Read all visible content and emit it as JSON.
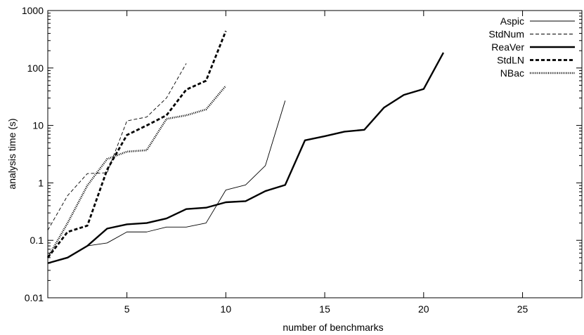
{
  "chart_data": {
    "type": "line",
    "title": "",
    "xlabel": "number of benchmarks",
    "ylabel": "analysis time (s)",
    "xlim": [
      1,
      28
    ],
    "ylim": [
      0.01,
      1000
    ],
    "yscale": "log",
    "grid": false,
    "legend_position": "top-right",
    "x_ticks": [
      5,
      10,
      15,
      20,
      25
    ],
    "x_tick_labels": [
      "5",
      "10",
      "15",
      "20",
      "25"
    ],
    "y_ticks": [
      0.01,
      0.1,
      1,
      10,
      100,
      1000
    ],
    "y_tick_labels": [
      "0.01",
      "0.1",
      "1",
      "10",
      "100",
      "1000"
    ],
    "series": [
      {
        "name": "Aspic",
        "style": "thin-solid",
        "points": [
          [
            1,
            0.04
          ],
          [
            2,
            0.05
          ],
          [
            3,
            0.08
          ],
          [
            4,
            0.09
          ],
          [
            5,
            0.14
          ],
          [
            6,
            0.14
          ],
          [
            7,
            0.17
          ],
          [
            8,
            0.17
          ],
          [
            9,
            0.2
          ],
          [
            10,
            0.75
          ],
          [
            11,
            0.92
          ],
          [
            12,
            2.0
          ],
          [
            13,
            27
          ]
        ]
      },
      {
        "name": "StdNum",
        "style": "thin-dashed",
        "points": [
          [
            1,
            0.15
          ],
          [
            2,
            0.6
          ],
          [
            3,
            1.45
          ],
          [
            4,
            1.5
          ],
          [
            5,
            12
          ],
          [
            6,
            14
          ],
          [
            7,
            30
          ],
          [
            8,
            120
          ]
        ]
      },
      {
        "name": "ReaVer",
        "style": "thick-solid",
        "points": [
          [
            1,
            0.04
          ],
          [
            2,
            0.05
          ],
          [
            3,
            0.08
          ],
          [
            4,
            0.16
          ],
          [
            5,
            0.19
          ],
          [
            6,
            0.2
          ],
          [
            7,
            0.24
          ],
          [
            8,
            0.35
          ],
          [
            9,
            0.37
          ],
          [
            10,
            0.46
          ],
          [
            11,
            0.48
          ],
          [
            12,
            0.72
          ],
          [
            13,
            0.92
          ],
          [
            14,
            5.5
          ],
          [
            15,
            6.5
          ],
          [
            16,
            7.8
          ],
          [
            17,
            8.4
          ],
          [
            18,
            20.5
          ],
          [
            19,
            34
          ],
          [
            20,
            43
          ],
          [
            21,
            185
          ]
        ]
      },
      {
        "name": "StdLN",
        "style": "thick-dashed",
        "points": [
          [
            1,
            0.05
          ],
          [
            2,
            0.14
          ],
          [
            3,
            0.18
          ],
          [
            4,
            1.7
          ],
          [
            5,
            6.8
          ],
          [
            6,
            10
          ],
          [
            7,
            15
          ],
          [
            8,
            42
          ],
          [
            9,
            60
          ],
          [
            10,
            440
          ]
        ]
      },
      {
        "name": "NBac",
        "style": "dotted",
        "points": [
          [
            1,
            0.05
          ],
          [
            2,
            0.2
          ],
          [
            3,
            0.9
          ],
          [
            4,
            2.6
          ],
          [
            5,
            3.5
          ],
          [
            6,
            3.7
          ],
          [
            7,
            13
          ],
          [
            8,
            15
          ],
          [
            9,
            19
          ],
          [
            10,
            49
          ]
        ]
      }
    ]
  }
}
